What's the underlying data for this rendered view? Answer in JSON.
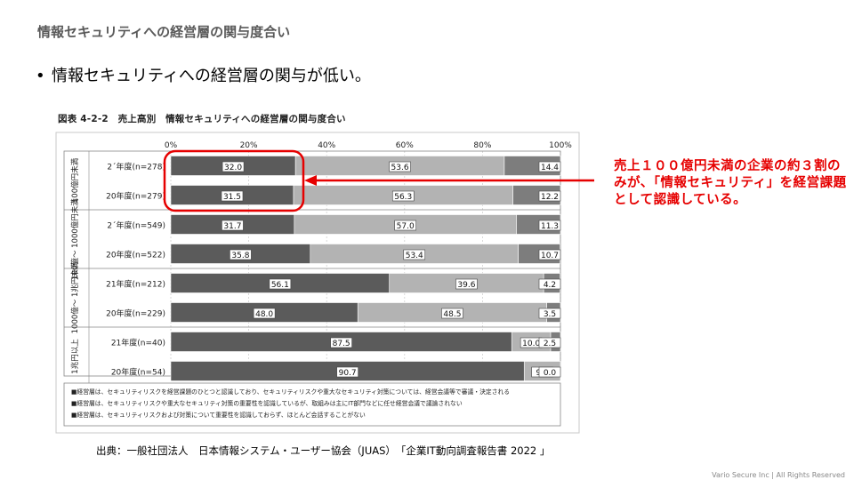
{
  "slide": {
    "header": "情報セキュリティへの経営層の関与度合い",
    "bullet_marker": "•",
    "bullet": "情報セキュリティへの経営層の関与が低い。",
    "callout": "売上１００億円未満の企業の約３割のみが、「情報セキュリティ」を経営課題として認識している。",
    "source": "出典：一般社団法人　日本情報システム・ユーザー協会（JUAS）　「企業IT動向調査報告書 2022 」",
    "footer": "Vario Secure Inc | All Rights Reserved"
  },
  "colors": {
    "dark": "#5b5b5b",
    "mid": "#b3b3b3",
    "light": "#7d7d7d",
    "highlight": "#e60000"
  },
  "chart_data": {
    "type": "bar",
    "orientation": "horizontal",
    "stacked": true,
    "title": "図表 4-2-2　売上高別　情報セキュリティへの経営層の関与度合い",
    "xlim": [
      0,
      100
    ],
    "x_ticks": [
      "0%",
      "20%",
      "40%",
      "60%",
      "80%",
      "100%"
    ],
    "groups": [
      {
        "label": "100億円未満",
        "rows": [
          {
            "label": "2´年度(n=278)",
            "values": [
              32.0,
              53.6,
              14.4
            ],
            "value_labels": [
              "32.0",
              "53.6",
              "14.4"
            ]
          },
          {
            "label": "20年度(n=279)",
            "values": [
              31.5,
              56.3,
              12.2
            ],
            "value_labels": [
              "31.5",
              "56.3",
              "12.2"
            ]
          }
        ]
      },
      {
        "label": "100億〜 1000億円未満",
        "rows": [
          {
            "label": "2´年度(n=549)",
            "values": [
              31.7,
              57.0,
              11.3
            ],
            "value_labels": [
              "31.7",
              "57.0",
              "11.3"
            ]
          },
          {
            "label": "20年度(n=522)",
            "values": [
              35.8,
              53.4,
              10.7
            ],
            "value_labels": [
              "35.8",
              "53.4",
              "10.7"
            ]
          }
        ]
      },
      {
        "label": "1000億〜 1兆円未満",
        "rows": [
          {
            "label": "21年度(n=212)",
            "values": [
              56.1,
              39.6,
              4.2
            ],
            "value_labels": [
              "56.1",
              "39.6",
              "4.2"
            ]
          },
          {
            "label": "20年度(n=229)",
            "values": [
              48.0,
              48.5,
              3.5
            ],
            "value_labels": [
              "48.0",
              "48.5",
              "3.5"
            ]
          }
        ]
      },
      {
        "label": "1兆円以上",
        "rows": [
          {
            "label": "21年度(n=40)",
            "values": [
              87.5,
              10.0,
              2.5
            ],
            "value_labels": [
              "87.5",
              "10.0",
              "2.5"
            ]
          },
          {
            "label": "20年度(n=54)",
            "values": [
              90.7,
              9.3,
              0.0
            ],
            "value_labels": [
              "90.7",
              "9.3",
              "0.0"
            ]
          }
        ]
      }
    ],
    "legend": [
      "■経営層は、セキュリティリスクを経営課題のひとつと認識しており、セキュリティリスクや重大なセキュリティ対策については、経営会議等で審議・決定される",
      "■経営層は、セキュリティリスクや重大なセキュリティ対策の重要性を認識しているが、取組みは主にIT部門などに任せ経営会議で議論されない",
      "■経営層は、セキュリティリスクおよび対策について重要性を認識しておらず、ほとんど会話することがない"
    ],
    "legend_placement": "bottom",
    "grid": true
  }
}
